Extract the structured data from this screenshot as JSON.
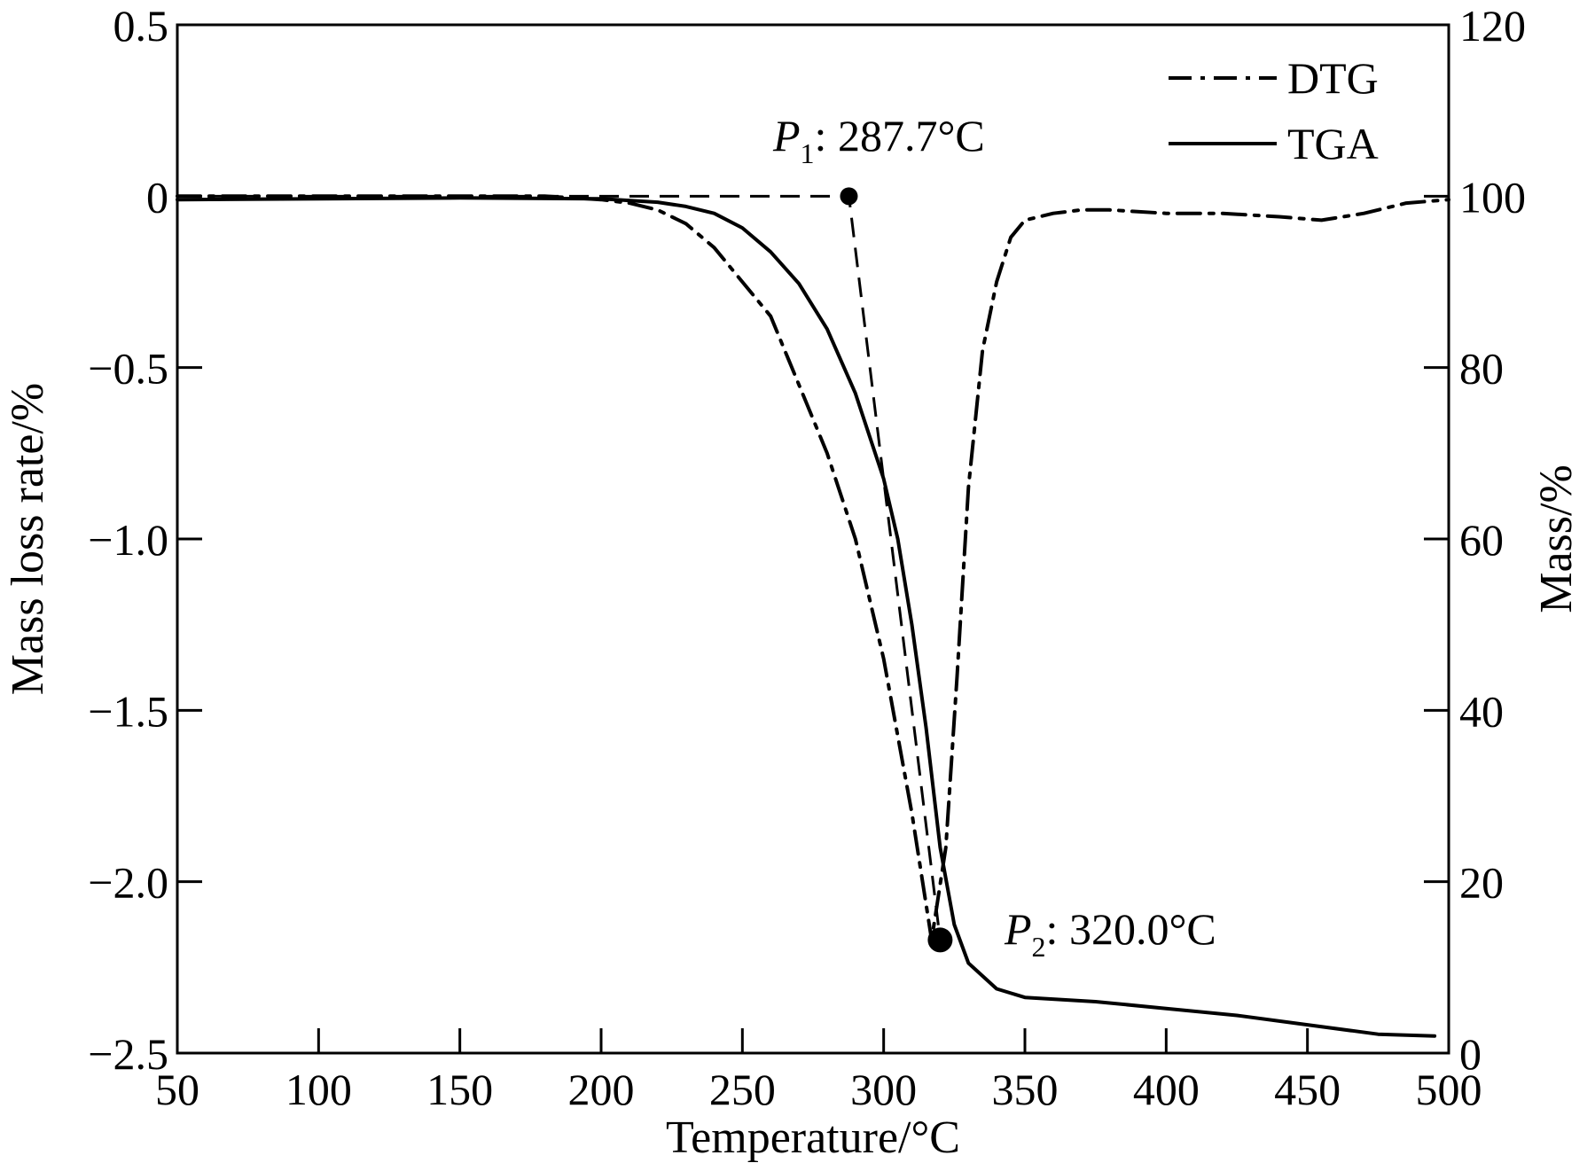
{
  "chart_data": {
    "type": "line",
    "xlabel": "Temperature/°C",
    "ylabel_left": "Mass loss rate/%",
    "ylabel_right": "Mass/%",
    "xlim": [
      50,
      500
    ],
    "ylim_left": [
      -2.5,
      0.5
    ],
    "ylim_right": [
      0,
      120
    ],
    "x_ticks": [
      50,
      100,
      150,
      200,
      250,
      300,
      350,
      400,
      450,
      500
    ],
    "x_tick_labels": [
      "50",
      "100",
      "150",
      "200",
      "250",
      "300",
      "350",
      "400",
      "450",
      "500"
    ],
    "y_left_ticks": [
      0.5,
      0,
      -0.5,
      -1.0,
      -1.5,
      -2.0,
      -2.5
    ],
    "y_left_tick_labels": [
      "0.5",
      "0",
      "−0.5",
      "−1.0",
      "−1.5",
      "−2.0",
      "−2.5"
    ],
    "y_right_ticks": [
      120,
      100,
      80,
      60,
      40,
      20,
      0
    ],
    "y_right_tick_labels": [
      "120",
      "100",
      "80",
      "60",
      "40",
      "20",
      "0"
    ],
    "grid": false,
    "legend_position": "top-right",
    "series": [
      {
        "name": "DTG",
        "axis": "left",
        "style": "dashdot",
        "color": "#000000",
        "points": [
          [
            50,
            0.0
          ],
          [
            100,
            0.0
          ],
          [
            150,
            0.0
          ],
          [
            180,
            0.0
          ],
          [
            200,
            -0.01
          ],
          [
            210,
            -0.02
          ],
          [
            220,
            -0.04
          ],
          [
            230,
            -0.08
          ],
          [
            240,
            -0.15
          ],
          [
            250,
            -0.25
          ],
          [
            260,
            -0.35
          ],
          [
            270,
            -0.55
          ],
          [
            280,
            -0.75
          ],
          [
            290,
            -1.0
          ],
          [
            300,
            -1.35
          ],
          [
            310,
            -1.8
          ],
          [
            317,
            -2.17
          ],
          [
            322,
            -1.9
          ],
          [
            326,
            -1.4
          ],
          [
            330,
            -0.85
          ],
          [
            335,
            -0.45
          ],
          [
            340,
            -0.25
          ],
          [
            345,
            -0.12
          ],
          [
            350,
            -0.07
          ],
          [
            360,
            -0.05
          ],
          [
            370,
            -0.04
          ],
          [
            380,
            -0.04
          ],
          [
            400,
            -0.05
          ],
          [
            420,
            -0.05
          ],
          [
            440,
            -0.06
          ],
          [
            455,
            -0.07
          ],
          [
            470,
            -0.05
          ],
          [
            485,
            -0.02
          ],
          [
            500,
            -0.01
          ]
        ]
      },
      {
        "name": "TGA",
        "axis": "right",
        "style": "solid",
        "color": "#000000",
        "points": [
          [
            50,
            99.6
          ],
          [
            100,
            99.7
          ],
          [
            150,
            99.8
          ],
          [
            200,
            99.7
          ],
          [
            220,
            99.3
          ],
          [
            230,
            98.8
          ],
          [
            240,
            98.0
          ],
          [
            250,
            96.3
          ],
          [
            260,
            93.5
          ],
          [
            270,
            89.8
          ],
          [
            280,
            84.5
          ],
          [
            290,
            77.0
          ],
          [
            300,
            67.0
          ],
          [
            305,
            60.0
          ],
          [
            310,
            50.0
          ],
          [
            315,
            38.0
          ],
          [
            320,
            24.0
          ],
          [
            325,
            15.0
          ],
          [
            330,
            10.5
          ],
          [
            340,
            7.5
          ],
          [
            350,
            6.5
          ],
          [
            375,
            6.0
          ],
          [
            400,
            5.2
          ],
          [
            425,
            4.4
          ],
          [
            450,
            3.3
          ],
          [
            475,
            2.2
          ],
          [
            495,
            2.0
          ]
        ]
      }
    ],
    "legend": [
      "DTG",
      "TGA"
    ],
    "annotations": [
      {
        "main": "P",
        "sub": "1",
        "text": ": 287.7°C",
        "x": 287.7,
        "y": 0.0,
        "axis": "left"
      },
      {
        "main": "P",
        "sub": "2",
        "text": ": 320.0°C",
        "x": 320.0,
        "y": -2.17,
        "axis": "left"
      }
    ]
  }
}
